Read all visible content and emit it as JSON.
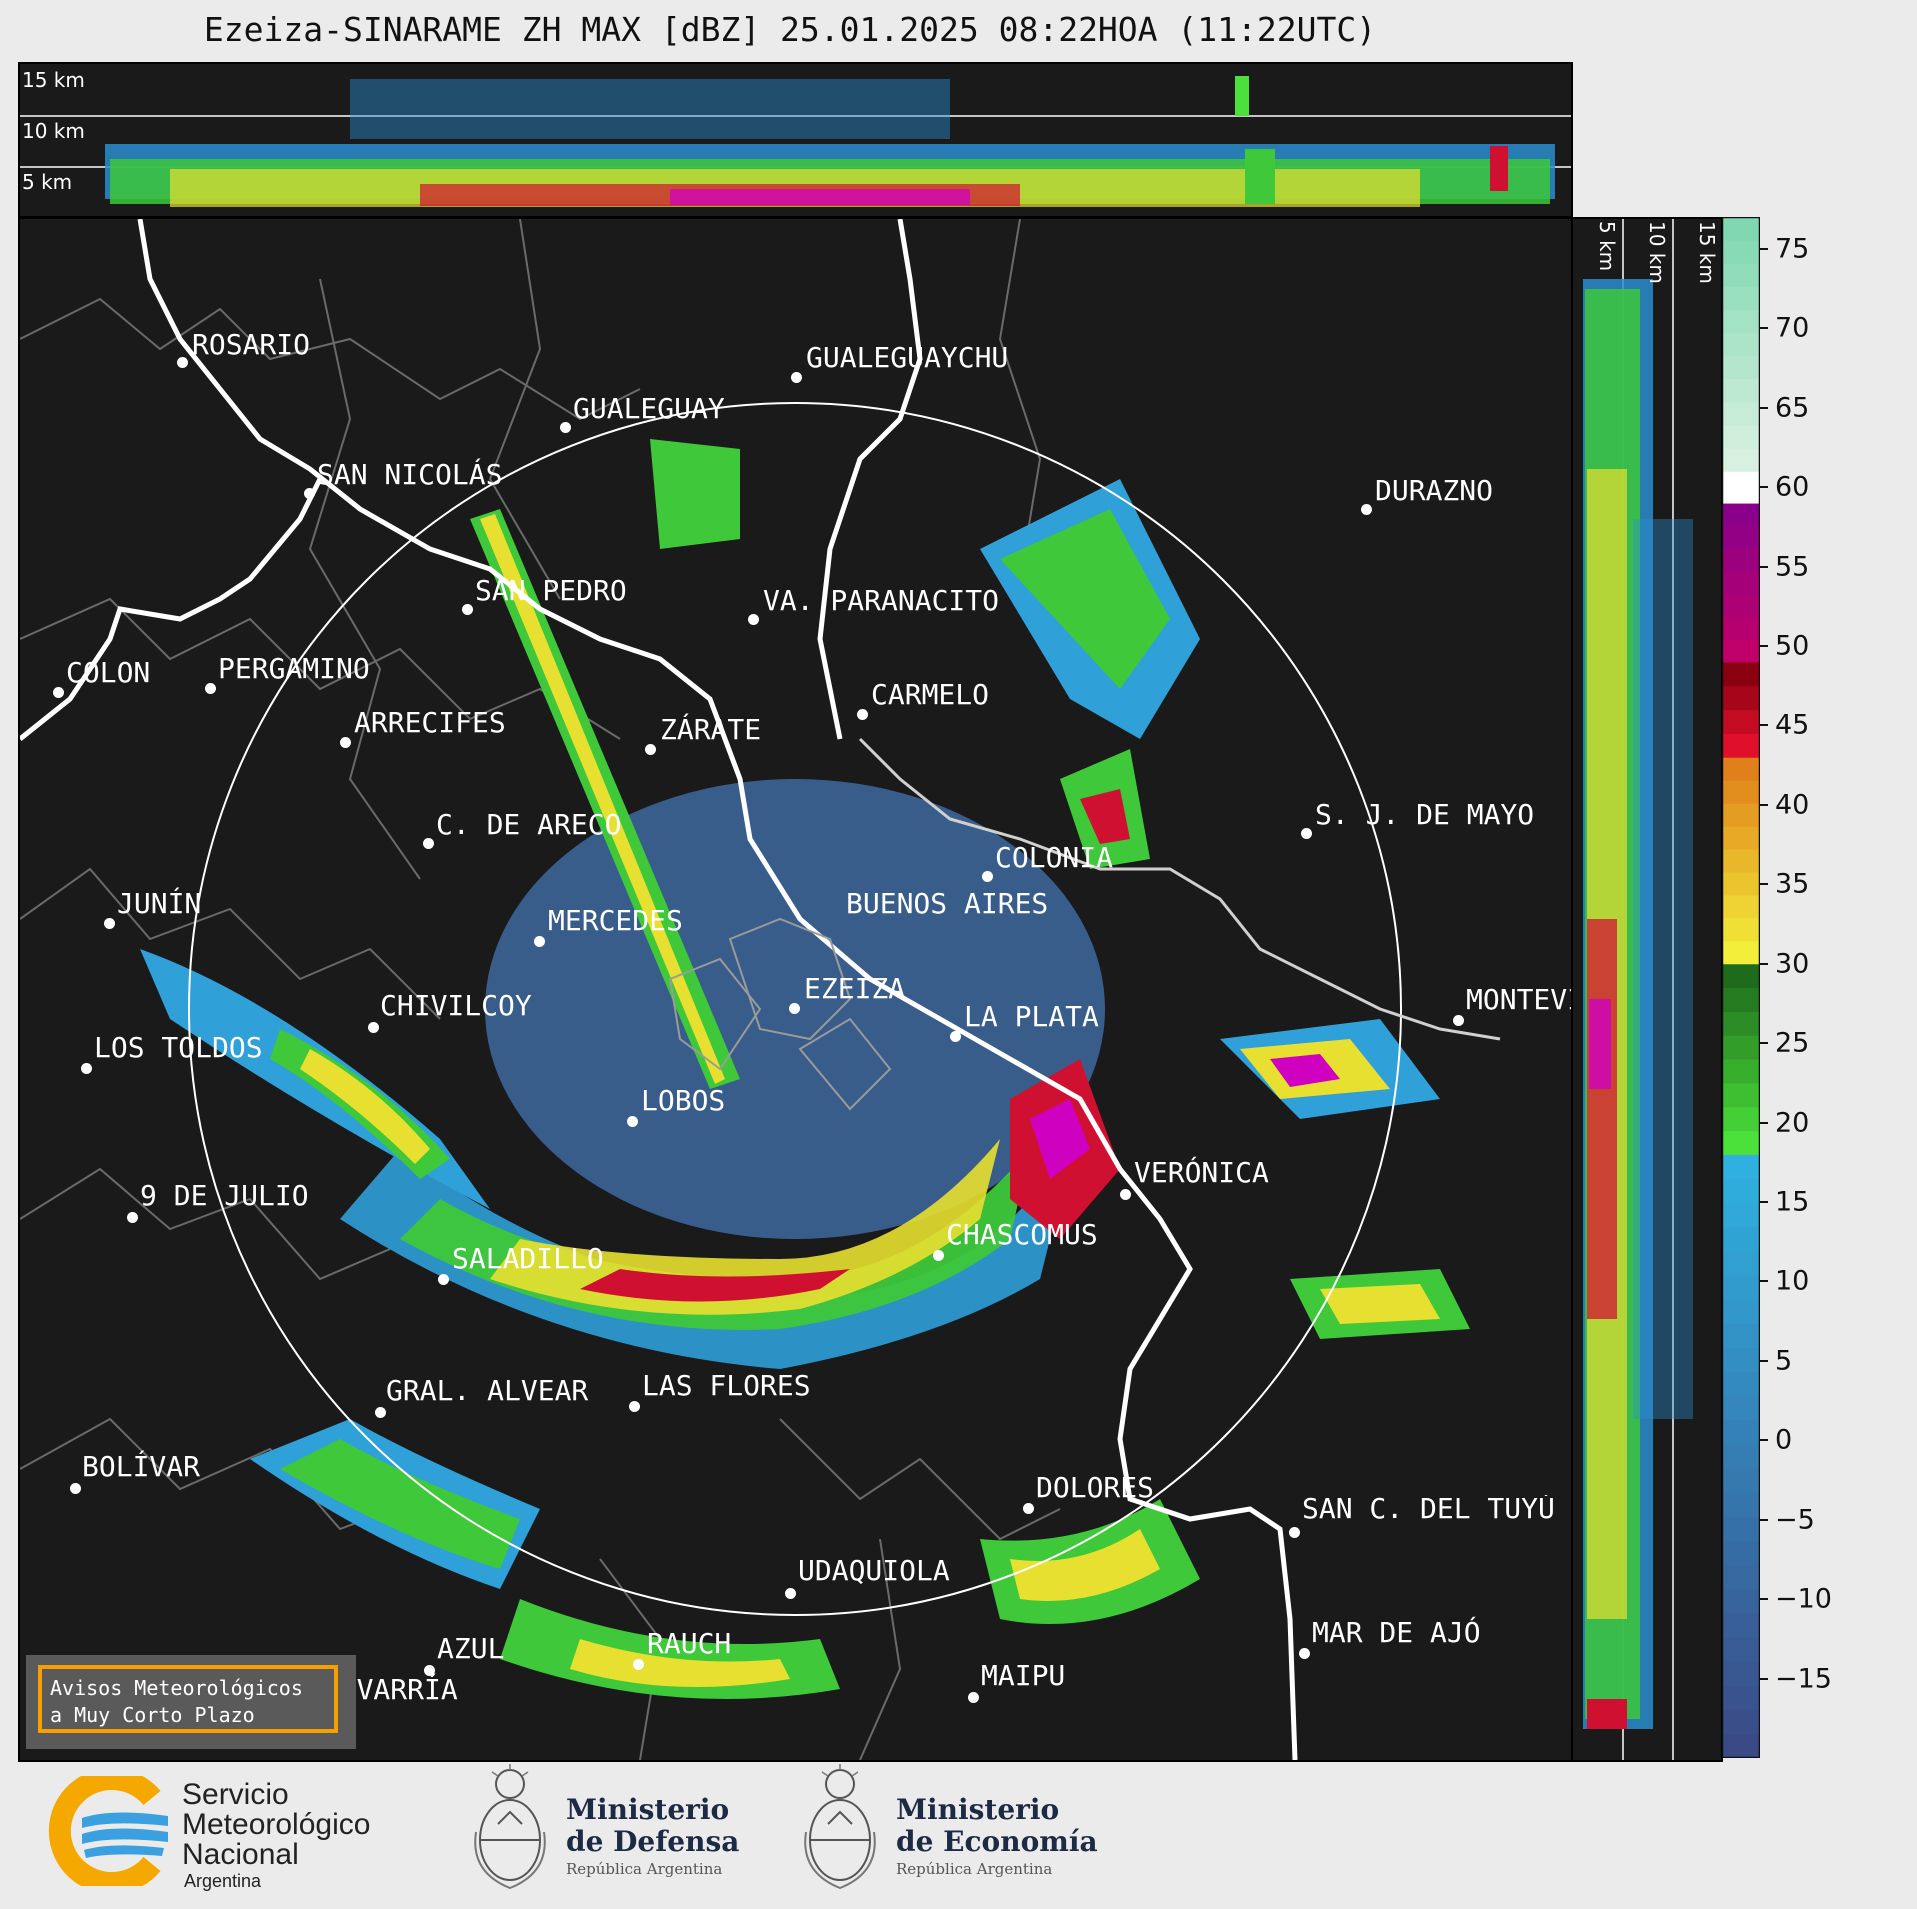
{
  "title": "Ezeiza-SINARAME ZH MAX [dBZ] 25.01.2025 08:22HOA (11:22UTC)",
  "top_panel": {
    "altitude_labels": [
      "15 km",
      "10 km",
      "5 km"
    ]
  },
  "side_panel": {
    "altitude_labels": [
      "5 km",
      "10 km",
      "15 km"
    ]
  },
  "cities": [
    {
      "name": "ROSARIO"
    },
    {
      "name": "GUALEGUAYCHU"
    },
    {
      "name": "GUALEGUAY"
    },
    {
      "name": "SAN NICOLÁS"
    },
    {
      "name": "DURAZNO"
    },
    {
      "name": "SAN PEDRO"
    },
    {
      "name": "VA. PARANACITO"
    },
    {
      "name": "COLON"
    },
    {
      "name": "PERGAMINO"
    },
    {
      "name": "CARMELO"
    },
    {
      "name": "ARRECIFES"
    },
    {
      "name": "ZÁRATE"
    },
    {
      "name": "S. J. DE MAYO"
    },
    {
      "name": "C. DE ARECO"
    },
    {
      "name": "COLONIA"
    },
    {
      "name": "JUNÍN"
    },
    {
      "name": "BUENOS AIRES"
    },
    {
      "name": "MERCEDES"
    },
    {
      "name": "EZEIZA"
    },
    {
      "name": "MONTEVIDEO"
    },
    {
      "name": "CHIVILCOY"
    },
    {
      "name": "LA PLATA"
    },
    {
      "name": "LOS TOLDOS"
    },
    {
      "name": "LOBOS"
    },
    {
      "name": "VERÓNICA"
    },
    {
      "name": "9 DE JULIO"
    },
    {
      "name": "CHASCOMUS"
    },
    {
      "name": "SALADILLO"
    },
    {
      "name": "GRAL. ALVEAR"
    },
    {
      "name": "LAS FLORES"
    },
    {
      "name": "BOLÍVAR"
    },
    {
      "name": "DOLORES"
    },
    {
      "name": "SAN C. DEL TUYÚ"
    },
    {
      "name": "UDAQUIOLA"
    },
    {
      "name": "MAR DE AJÓ"
    },
    {
      "name": "AZUL"
    },
    {
      "name": "RAUCH"
    },
    {
      "name": "OLAVARRÍA"
    },
    {
      "name": "MAIPU"
    }
  ],
  "colorbar": {
    "unit": "dBZ",
    "ticks": [
      "75",
      "70",
      "65",
      "60",
      "55",
      "50",
      "45",
      "40",
      "35",
      "30",
      "25",
      "20",
      "15",
      "10",
      "5",
      "0",
      "−5",
      "−10",
      "−15"
    ],
    "range": [
      -20,
      77
    ],
    "bands": [
      {
        "from": -20,
        "to": 18,
        "color": "#3a4a86",
        "to_color": "#2fb0e0"
      },
      {
        "from": 18,
        "to": 30,
        "color": "#4be03a",
        "to_color": "#1f6b1c"
      },
      {
        "from": 30,
        "to": 43,
        "color": "#f2ee3a",
        "to_color": "#e0801a"
      },
      {
        "from": 43,
        "to": 49,
        "color": "#e0102a",
        "to_color": "#8a0010"
      },
      {
        "from": 49,
        "to": 59,
        "color": "#c0006a",
        "to_color": "#8a008a"
      },
      {
        "from": 59,
        "to": 61,
        "color": "#ffffff",
        "to_color": "#ffffff"
      },
      {
        "from": 61,
        "to": 77,
        "color": "#d8f0e0",
        "to_color": "#7fd8b0"
      }
    ]
  },
  "avisos": {
    "line1": "Avisos Meteorológicos",
    "line2": "a Muy Corto Plazo"
  },
  "footer": {
    "smn": {
      "line1": "Servicio",
      "line2": "Meteorológico",
      "line3": "Nacional",
      "line4": "Argentina"
    },
    "defensa": {
      "line1": "Ministerio",
      "line2": "de Defensa",
      "line3": "República Argentina"
    },
    "economia": {
      "line1": "Ministerio",
      "line2": "de Economía",
      "line3": "República Argentina"
    }
  },
  "colors": {
    "page_bg": "#ebebeb",
    "panel_bg": "#1a1a1a",
    "avisos_border": "#f5a000",
    "ministry_text": "#1c2a44"
  }
}
